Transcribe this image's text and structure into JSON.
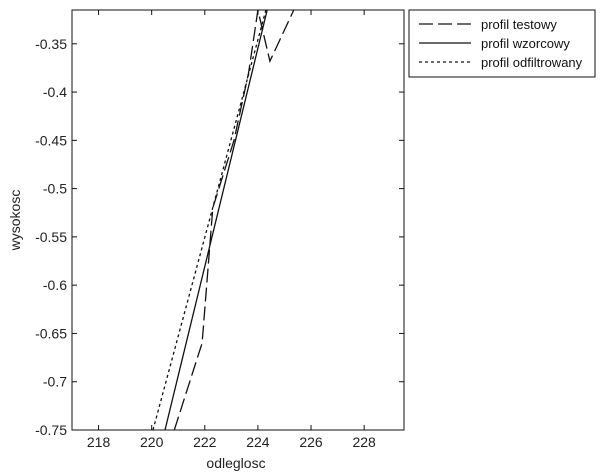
{
  "chart_data": {
    "type": "line",
    "title": "",
    "xlabel": "odleglosc",
    "ylabel": "wysokosc",
    "xlim": [
      217,
      229.5
    ],
    "ylim": [
      -0.75,
      -0.315
    ],
    "xticks": [
      218,
      220,
      222,
      224,
      226,
      228
    ],
    "yticks": [
      -0.35,
      -0.4,
      -0.45,
      -0.5,
      -0.55,
      -0.6,
      -0.65,
      -0.7,
      -0.75
    ],
    "grid": false,
    "legend_position": "outside top-right",
    "series": [
      {
        "name": "profil testowy",
        "style": "long-dash",
        "color": "#111111",
        "points": [
          [
            220.85,
            -0.75
          ],
          [
            221.9,
            -0.66
          ],
          [
            222.3,
            -0.52
          ],
          [
            223.1,
            -0.45
          ],
          [
            223.65,
            -0.38
          ],
          [
            224.0,
            -0.315
          ],
          [
            224.45,
            -0.368
          ],
          [
            225.35,
            -0.315
          ]
        ]
      },
      {
        "name": "profil wzorcowy",
        "style": "solid",
        "color": "#111111",
        "points": [
          [
            220.5,
            -0.75
          ],
          [
            224.35,
            -0.315
          ]
        ]
      },
      {
        "name": "profil odfiltrowany",
        "style": "dotted",
        "color": "#111111",
        "points": [
          [
            220.05,
            -0.75
          ],
          [
            224.3,
            -0.315
          ]
        ]
      }
    ]
  }
}
